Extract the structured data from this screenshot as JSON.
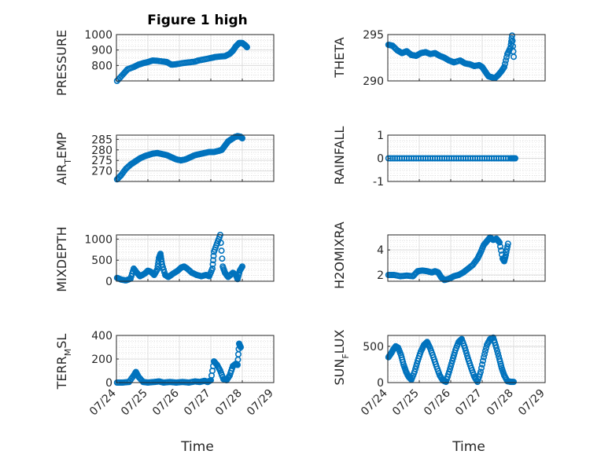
{
  "figure_title": "Figure 1 high",
  "x_label": "Time",
  "x_ticks": [
    "07/24",
    "07/25",
    "07/26",
    "07/27",
    "07/28",
    "07/29"
  ],
  "marker_color": "#0072BD",
  "chart_data": [
    {
      "type": "scatter",
      "id": "pressure",
      "ylabel": "PRESSURE",
      "ylim": [
        700,
        1000
      ],
      "yticks": [
        "1000",
        "900",
        "800"
      ],
      "xlim": [
        0,
        5
      ],
      "series": [
        {
          "values": [
            [
              0.02,
              700
            ],
            [
              0.2,
              740
            ],
            [
              0.35,
              775
            ],
            [
              0.55,
              790
            ],
            [
              0.7,
              805
            ],
            [
              0.85,
              815
            ],
            [
              1.0,
              822
            ],
            [
              1.15,
              832
            ],
            [
              1.3,
              830
            ],
            [
              1.5,
              825
            ],
            [
              1.6,
              822
            ],
            [
              1.75,
              805
            ],
            [
              1.9,
              808
            ],
            [
              2.1,
              815
            ],
            [
              2.3,
              820
            ],
            [
              2.5,
              825
            ],
            [
              2.6,
              832
            ],
            [
              2.8,
              840
            ],
            [
              3.0,
              848
            ],
            [
              3.15,
              855
            ],
            [
              3.3,
              858
            ],
            [
              3.45,
              860
            ],
            [
              3.6,
              875
            ],
            [
              3.7,
              895
            ],
            [
              3.8,
              925
            ],
            [
              3.9,
              945
            ],
            [
              4.0,
              945
            ],
            [
              4.1,
              930
            ],
            [
              4.15,
              918
            ]
          ]
        }
      ]
    },
    {
      "type": "scatter",
      "id": "theta",
      "ylabel": "THETA",
      "ylim": [
        290,
        295
      ],
      "yticks": [
        "295",
        "290"
      ],
      "xlim": [
        0,
        5
      ],
      "series": [
        {
          "values": [
            [
              0.02,
              293.9
            ],
            [
              0.15,
              293.8
            ],
            [
              0.3,
              293.3
            ],
            [
              0.45,
              293.0
            ],
            [
              0.6,
              293.2
            ],
            [
              0.75,
              292.8
            ],
            [
              0.9,
              292.7
            ],
            [
              1.05,
              293.0
            ],
            [
              1.2,
              293.1
            ],
            [
              1.35,
              292.9
            ],
            [
              1.5,
              293.0
            ],
            [
              1.65,
              292.7
            ],
            [
              1.8,
              292.5
            ],
            [
              1.95,
              292.2
            ],
            [
              2.1,
              292.0
            ],
            [
              2.3,
              292.2
            ],
            [
              2.45,
              291.9
            ],
            [
              2.6,
              291.8
            ],
            [
              2.75,
              291.6
            ],
            [
              2.9,
              291.7
            ],
            [
              3.0,
              291.5
            ],
            [
              3.1,
              291.0
            ],
            [
              3.2,
              290.5
            ],
            [
              3.3,
              290.4
            ],
            [
              3.4,
              290.3
            ],
            [
              3.5,
              290.6
            ],
            [
              3.6,
              291.0
            ],
            [
              3.7,
              291.5
            ],
            [
              3.8,
              292.9
            ],
            [
              3.9,
              293.6
            ],
            [
              3.95,
              294.9
            ],
            [
              4.0,
              292.6
            ]
          ]
        }
      ]
    },
    {
      "type": "scatter",
      "id": "air_temp",
      "ylabel": "AIR_TEMP",
      "ylim": [
        265,
        287
      ],
      "yticks": [
        "285",
        "280",
        "275",
        "270"
      ],
      "xlim": [
        0,
        5
      ],
      "series": [
        {
          "values": [
            [
              0.02,
              266
            ],
            [
              0.15,
              268
            ],
            [
              0.3,
              271
            ],
            [
              0.45,
              273
            ],
            [
              0.6,
              274.5
            ],
            [
              0.75,
              276
            ],
            [
              0.9,
              277
            ],
            [
              1.0,
              277.5
            ],
            [
              1.15,
              278.2
            ],
            [
              1.3,
              278.5
            ],
            [
              1.45,
              278.0
            ],
            [
              1.6,
              277.5
            ],
            [
              1.75,
              276.5
            ],
            [
              1.9,
              275.5
            ],
            [
              2.05,
              275.0
            ],
            [
              2.2,
              275.5
            ],
            [
              2.35,
              276.5
            ],
            [
              2.5,
              277.5
            ],
            [
              2.65,
              278.0
            ],
            [
              2.8,
              278.5
            ],
            [
              2.95,
              279.0
            ],
            [
              3.1,
              279.0
            ],
            [
              3.25,
              279.5
            ],
            [
              3.35,
              280.0
            ],
            [
              3.45,
              282
            ],
            [
              3.55,
              284
            ],
            [
              3.65,
              285
            ],
            [
              3.75,
              286
            ],
            [
              3.85,
              286.5
            ],
            [
              3.95,
              286.2
            ],
            [
              4.0,
              285.5
            ]
          ]
        }
      ]
    },
    {
      "type": "scatter",
      "id": "rainfall",
      "ylabel": "RAINFALL",
      "ylim": [
        -1,
        1
      ],
      "yticks": [
        "1",
        "0",
        "-1"
      ],
      "xlim": [
        0,
        5
      ],
      "series": [
        {
          "values": [
            [
              0.02,
              0
            ],
            [
              0.3,
              0
            ],
            [
              0.6,
              0
            ],
            [
              0.9,
              0
            ],
            [
              1.2,
              0
            ],
            [
              1.5,
              0
            ],
            [
              1.8,
              0
            ],
            [
              2.1,
              0
            ],
            [
              2.4,
              0
            ],
            [
              2.7,
              0
            ],
            [
              3.0,
              0
            ],
            [
              3.3,
              0
            ],
            [
              3.6,
              0
            ],
            [
              3.9,
              0
            ],
            [
              4.05,
              0
            ]
          ]
        }
      ]
    },
    {
      "type": "scatter",
      "id": "mixdepth",
      "ylabel": "MIXDEPTH",
      "ylim": [
        0,
        1100
      ],
      "yticks": [
        "1000",
        "500",
        "0"
      ],
      "xlim": [
        0,
        5
      ],
      "series": [
        {
          "values": [
            [
              0.02,
              80
            ],
            [
              0.15,
              40
            ],
            [
              0.3,
              20
            ],
            [
              0.45,
              60
            ],
            [
              0.55,
              300
            ],
            [
              0.65,
              200
            ],
            [
              0.75,
              120
            ],
            [
              0.9,
              180
            ],
            [
              1.0,
              250
            ],
            [
              1.1,
              220
            ],
            [
              1.2,
              150
            ],
            [
              1.3,
              280
            ],
            [
              1.35,
              550
            ],
            [
              1.4,
              650
            ],
            [
              1.45,
              400
            ],
            [
              1.55,
              150
            ],
            [
              1.65,
              100
            ],
            [
              1.8,
              180
            ],
            [
              1.95,
              250
            ],
            [
              2.05,
              320
            ],
            [
              2.15,
              350
            ],
            [
              2.25,
              300
            ],
            [
              2.4,
              200
            ],
            [
              2.55,
              150
            ],
            [
              2.7,
              120
            ],
            [
              2.85,
              150
            ],
            [
              2.95,
              120
            ],
            [
              3.05,
              300
            ],
            [
              3.1,
              700
            ],
            [
              3.2,
              900
            ],
            [
              3.3,
              1100
            ],
            [
              3.38,
              350
            ],
            [
              3.45,
              200
            ],
            [
              3.55,
              100
            ],
            [
              3.7,
              200
            ],
            [
              3.8,
              150
            ],
            [
              3.85,
              50
            ],
            [
              3.92,
              250
            ],
            [
              4.0,
              350
            ]
          ]
        }
      ]
    },
    {
      "type": "scatter",
      "id": "h2omixra",
      "ylabel": "H2OMIXRA",
      "ylim": [
        1.5,
        5.2
      ],
      "yticks": [
        "4",
        "2"
      ],
      "xlim": [
        0,
        5
      ],
      "series": [
        {
          "values": [
            [
              0.02,
              2.0
            ],
            [
              0.2,
              2.0
            ],
            [
              0.4,
              1.9
            ],
            [
              0.6,
              1.95
            ],
            [
              0.8,
              1.9
            ],
            [
              0.95,
              2.3
            ],
            [
              1.1,
              2.35
            ],
            [
              1.25,
              2.3
            ],
            [
              1.4,
              2.2
            ],
            [
              1.5,
              2.3
            ],
            [
              1.6,
              2.2
            ],
            [
              1.7,
              1.8
            ],
            [
              1.8,
              1.6
            ],
            [
              1.95,
              1.7
            ],
            [
              2.1,
              1.9
            ],
            [
              2.25,
              2.0
            ],
            [
              2.4,
              2.2
            ],
            [
              2.55,
              2.5
            ],
            [
              2.7,
              2.8
            ],
            [
              2.85,
              3.3
            ],
            [
              2.95,
              3.8
            ],
            [
              3.05,
              4.4
            ],
            [
              3.15,
              4.7
            ],
            [
              3.25,
              5.0
            ],
            [
              3.35,
              4.8
            ],
            [
              3.45,
              4.9
            ],
            [
              3.55,
              4.6
            ],
            [
              3.65,
              3.3
            ],
            [
              3.7,
              3.1
            ],
            [
              3.75,
              3.6
            ],
            [
              3.82,
              4.5
            ]
          ]
        }
      ]
    },
    {
      "type": "scatter",
      "id": "terr_msl",
      "ylabel": "TERR_MSL",
      "ylim": [
        0,
        400
      ],
      "yticks": [
        "400",
        "200",
        "0"
      ],
      "xlim": [
        0,
        5
      ],
      "series": [
        {
          "values": [
            [
              0.02,
              0
            ],
            [
              0.2,
              0
            ],
            [
              0.4,
              5
            ],
            [
              0.55,
              60
            ],
            [
              0.62,
              90
            ],
            [
              0.7,
              50
            ],
            [
              0.85,
              5
            ],
            [
              1.0,
              0
            ],
            [
              1.2,
              5
            ],
            [
              1.35,
              10
            ],
            [
              1.5,
              0
            ],
            [
              1.7,
              5
            ],
            [
              1.9,
              0
            ],
            [
              2.1,
              5
            ],
            [
              2.3,
              0
            ],
            [
              2.5,
              10
            ],
            [
              2.65,
              5
            ],
            [
              2.8,
              15
            ],
            [
              2.9,
              5
            ],
            [
              3.0,
              20
            ],
            [
              3.1,
              180
            ],
            [
              3.2,
              150
            ],
            [
              3.3,
              100
            ],
            [
              3.4,
              30
            ],
            [
              3.5,
              20
            ],
            [
              3.6,
              60
            ],
            [
              3.7,
              140
            ],
            [
              3.8,
              160
            ],
            [
              3.85,
              150
            ],
            [
              3.9,
              330
            ],
            [
              3.95,
              300
            ]
          ]
        }
      ]
    },
    {
      "type": "scatter",
      "id": "sun_flux",
      "ylabel": "SUN_FLUX",
      "ylim": [
        0,
        650
      ],
      "yticks": [
        "500",
        "0"
      ],
      "xlim": [
        0,
        5
      ],
      "series": [
        {
          "values": [
            [
              0.02,
              350
            ],
            [
              0.1,
              400
            ],
            [
              0.18,
              460
            ],
            [
              0.25,
              500
            ],
            [
              0.33,
              480
            ],
            [
              0.42,
              380
            ],
            [
              0.5,
              250
            ],
            [
              0.58,
              150
            ],
            [
              0.66,
              80
            ],
            [
              0.75,
              40
            ],
            [
              0.85,
              150
            ],
            [
              0.95,
              300
            ],
            [
              1.05,
              430
            ],
            [
              1.15,
              520
            ],
            [
              1.25,
              560
            ],
            [
              1.35,
              470
            ],
            [
              1.45,
              350
            ],
            [
              1.55,
              220
            ],
            [
              1.65,
              100
            ],
            [
              1.75,
              30
            ],
            [
              1.85,
              10
            ],
            [
              1.95,
              150
            ],
            [
              2.05,
              300
            ],
            [
              2.15,
              450
            ],
            [
              2.25,
              560
            ],
            [
              2.35,
              600
            ],
            [
              2.45,
              480
            ],
            [
              2.55,
              330
            ],
            [
              2.65,
              200
            ],
            [
              2.75,
              80
            ],
            [
              2.85,
              10
            ],
            [
              2.95,
              150
            ],
            [
              3.05,
              350
            ],
            [
              3.15,
              520
            ],
            [
              3.25,
              600
            ],
            [
              3.35,
              620
            ],
            [
              3.45,
              480
            ],
            [
              3.55,
              320
            ],
            [
              3.62,
              200
            ],
            [
              3.7,
              100
            ],
            [
              3.8,
              20
            ],
            [
              3.9,
              10
            ],
            [
              4.0,
              10
            ]
          ]
        }
      ]
    }
  ]
}
